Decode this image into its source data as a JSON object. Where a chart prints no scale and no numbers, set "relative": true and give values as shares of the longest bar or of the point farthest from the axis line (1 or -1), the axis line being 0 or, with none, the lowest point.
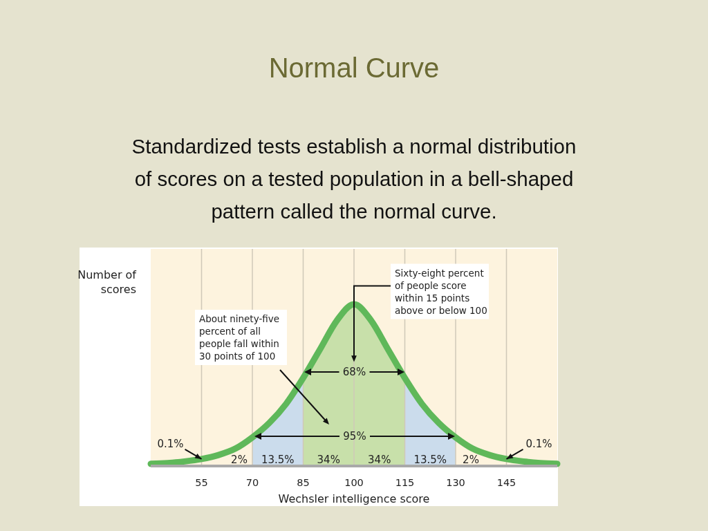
{
  "chart_data": {
    "type": "line",
    "title": "Normal Curve",
    "subtitle": "Standardized tests establish a normal distribution of scores on a tested population in a bell-shaped pattern called the normal curve.",
    "xlabel": "Wechsler intelligence score",
    "ylabel": "Number of scores",
    "relative": true,
    "x": [
      40,
      45,
      50,
      55,
      60,
      65,
      70,
      75,
      80,
      85,
      90,
      95,
      100,
      105,
      110,
      115,
      120,
      125,
      130,
      135,
      140,
      145,
      150,
      155,
      160
    ],
    "series": [
      {
        "color": "#5fb85a",
        "values": [
          0.005,
          0.01,
          0.02,
          0.035,
          0.06,
          0.1,
          0.17,
          0.26,
          0.38,
          0.54,
          0.72,
          0.9,
          1,
          0.9,
          0.72,
          0.54,
          0.38,
          0.26,
          0.17,
          0.1,
          0.06,
          0.035,
          0.02,
          0.01,
          0.005
        ]
      }
    ],
    "xlim": [
      40,
      160
    ],
    "xticks": [
      55,
      70,
      85,
      100,
      115,
      130,
      145
    ],
    "grid": "x",
    "line_style": "solid",
    "marker": "none",
    "bands": [
      {
        "axis": "x",
        "from": 70,
        "to": 85,
        "label": "13.5%",
        "color": "#cbdcec"
      },
      {
        "axis": "x",
        "from": 85,
        "to": 100,
        "label": "34%",
        "color": "#c8e0aa"
      },
      {
        "axis": "x",
        "from": 100,
        "to": 115,
        "label": "34%",
        "color": "#c8e0aa"
      },
      {
        "axis": "x",
        "from": 115,
        "to": 130,
        "label": "13.5%",
        "color": "#cbdcec"
      }
    ],
    "annotations": [
      {
        "text": "Sixty-eight percent of people score within 15 points above or below 100",
        "x": 100,
        "y": 0.64
      },
      "About ninety-five percent of all people fall within 30 points of 100",
      {
        "text": "0.1%",
        "x": 55,
        "y": 0.035
      },
      {
        "text": "0.1%",
        "x": 145,
        "y": 0.035
      },
      "2%",
      "2%",
      "68%",
      "95%"
    ]
  }
}
